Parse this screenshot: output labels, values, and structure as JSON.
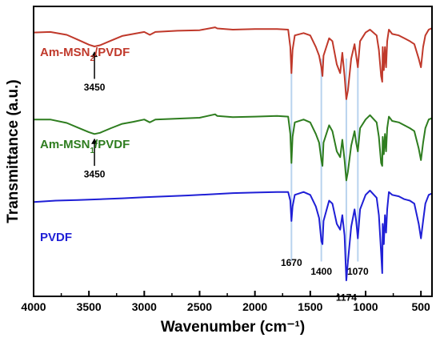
{
  "chart_data": {
    "type": "line",
    "xlabel": "Wavenumber (cm⁻¹)",
    "ylabel": "Transmittance (a.u.)",
    "xlim": [
      4000,
      400
    ],
    "ylim": [
      0,
      10
    ],
    "x_reversed": true,
    "grid": false,
    "yticks_shown": false,
    "xticks": [
      4000,
      3500,
      3000,
      2500,
      2000,
      1500,
      1000,
      500
    ],
    "xtick_labels": [
      "4000",
      "3500",
      "3000",
      "2500",
      "2000",
      "1500",
      "1000",
      "500"
    ],
    "series": [
      {
        "name": "Am-MSN₂/PVDF",
        "label_main": "Am-MSN",
        "label_sub": "2",
        "label_tail": "/PVDF",
        "color": "#c0392b",
        "points": [
          [
            4000,
            9.1
          ],
          [
            3850,
            9.12
          ],
          [
            3700,
            9.02
          ],
          [
            3600,
            8.85
          ],
          [
            3500,
            8.68
          ],
          [
            3450,
            8.62
          ],
          [
            3400,
            8.66
          ],
          [
            3300,
            8.82
          ],
          [
            3200,
            8.98
          ],
          [
            3100,
            9.05
          ],
          [
            3000,
            9.12
          ],
          [
            2950,
            9.02
          ],
          [
            2900,
            9.12
          ],
          [
            2700,
            9.16
          ],
          [
            2500,
            9.18
          ],
          [
            2360,
            9.28
          ],
          [
            2340,
            9.24
          ],
          [
            2200,
            9.2
          ],
          [
            2000,
            9.22
          ],
          [
            1800,
            9.22
          ],
          [
            1700,
            9.2
          ],
          [
            1680,
            8.6
          ],
          [
            1670,
            7.7
          ],
          [
            1660,
            8.5
          ],
          [
            1640,
            9.0
          ],
          [
            1560,
            9.08
          ],
          [
            1500,
            9.0
          ],
          [
            1450,
            8.6
          ],
          [
            1420,
            8.3
          ],
          [
            1400,
            7.9
          ],
          [
            1390,
            7.6
          ],
          [
            1380,
            8.3
          ],
          [
            1330,
            8.9
          ],
          [
            1300,
            8.8
          ],
          [
            1260,
            8.0
          ],
          [
            1230,
            7.7
          ],
          [
            1210,
            8.4
          ],
          [
            1190,
            7.6
          ],
          [
            1174,
            6.8
          ],
          [
            1160,
            7.1
          ],
          [
            1130,
            8.2
          ],
          [
            1100,
            8.7
          ],
          [
            1085,
            8.3
          ],
          [
            1070,
            7.9
          ],
          [
            1050,
            8.8
          ],
          [
            1000,
            9.1
          ],
          [
            960,
            9.2
          ],
          [
            900,
            9.0
          ],
          [
            880,
            8.5
          ],
          [
            860,
            7.6
          ],
          [
            850,
            7.4
          ],
          [
            845,
            8.6
          ],
          [
            835,
            7.8
          ],
          [
            825,
            8.6
          ],
          [
            815,
            7.9
          ],
          [
            805,
            8.8
          ],
          [
            790,
            9.2
          ],
          [
            760,
            9.05
          ],
          [
            700,
            9.0
          ],
          [
            650,
            8.9
          ],
          [
            600,
            8.8
          ],
          [
            560,
            8.7
          ],
          [
            520,
            8.2
          ],
          [
            500,
            7.9
          ],
          [
            480,
            8.6
          ],
          [
            460,
            9.0
          ],
          [
            430,
            9.2
          ],
          [
            400,
            9.25
          ]
        ]
      },
      {
        "name": "Am-MSN₁/PVDF",
        "label_main": "Am-MSN",
        "label_sub": "1",
        "label_tail": "/PVDF",
        "color": "#2e7d1f",
        "points": [
          [
            4000,
            6.1
          ],
          [
            3850,
            6.1
          ],
          [
            3700,
            5.98
          ],
          [
            3600,
            5.82
          ],
          [
            3500,
            5.66
          ],
          [
            3450,
            5.6
          ],
          [
            3400,
            5.64
          ],
          [
            3300,
            5.8
          ],
          [
            3200,
            5.95
          ],
          [
            3100,
            6.02
          ],
          [
            3000,
            6.1
          ],
          [
            2950,
            6.0
          ],
          [
            2900,
            6.1
          ],
          [
            2700,
            6.13
          ],
          [
            2500,
            6.16
          ],
          [
            2360,
            6.28
          ],
          [
            2340,
            6.22
          ],
          [
            2200,
            6.18
          ],
          [
            2000,
            6.2
          ],
          [
            1800,
            6.22
          ],
          [
            1700,
            6.2
          ],
          [
            1680,
            5.6
          ],
          [
            1670,
            4.6
          ],
          [
            1660,
            5.5
          ],
          [
            1640,
            6.0
          ],
          [
            1560,
            6.1
          ],
          [
            1500,
            6.0
          ],
          [
            1450,
            5.6
          ],
          [
            1420,
            5.3
          ],
          [
            1400,
            4.7
          ],
          [
            1390,
            4.5
          ],
          [
            1380,
            5.3
          ],
          [
            1330,
            5.9
          ],
          [
            1300,
            5.7
          ],
          [
            1260,
            5.0
          ],
          [
            1230,
            4.8
          ],
          [
            1210,
            5.4
          ],
          [
            1190,
            4.7
          ],
          [
            1174,
            4.0
          ],
          [
            1160,
            4.3
          ],
          [
            1130,
            5.2
          ],
          [
            1100,
            5.7
          ],
          [
            1085,
            5.3
          ],
          [
            1070,
            5.0
          ],
          [
            1050,
            5.8
          ],
          [
            1000,
            6.1
          ],
          [
            960,
            6.25
          ],
          [
            900,
            6.0
          ],
          [
            880,
            5.5
          ],
          [
            860,
            4.6
          ],
          [
            850,
            4.5
          ],
          [
            845,
            5.5
          ],
          [
            835,
            4.9
          ],
          [
            825,
            5.6
          ],
          [
            815,
            5.0
          ],
          [
            805,
            5.8
          ],
          [
            790,
            6.2
          ],
          [
            760,
            6.05
          ],
          [
            700,
            6.0
          ],
          [
            650,
            5.9
          ],
          [
            600,
            5.8
          ],
          [
            560,
            5.7
          ],
          [
            520,
            5.1
          ],
          [
            500,
            4.7
          ],
          [
            480,
            5.3
          ],
          [
            460,
            5.8
          ],
          [
            430,
            6.1
          ],
          [
            400,
            6.15
          ]
        ]
      },
      {
        "name": "PVDF",
        "label_main": "PVDF",
        "label_sub": "",
        "label_tail": "",
        "color": "#1f1fd6",
        "points": [
          [
            4000,
            3.25
          ],
          [
            3800,
            3.3
          ],
          [
            3600,
            3.32
          ],
          [
            3400,
            3.35
          ],
          [
            3200,
            3.38
          ],
          [
            3000,
            3.42
          ],
          [
            2800,
            3.45
          ],
          [
            2600,
            3.48
          ],
          [
            2400,
            3.52
          ],
          [
            2200,
            3.56
          ],
          [
            2000,
            3.58
          ],
          [
            1800,
            3.6
          ],
          [
            1700,
            3.6
          ],
          [
            1680,
            3.3
          ],
          [
            1670,
            2.6
          ],
          [
            1660,
            3.1
          ],
          [
            1640,
            3.5
          ],
          [
            1560,
            3.6
          ],
          [
            1500,
            3.5
          ],
          [
            1450,
            3.1
          ],
          [
            1420,
            2.7
          ],
          [
            1400,
            1.9
          ],
          [
            1390,
            1.8
          ],
          [
            1380,
            2.6
          ],
          [
            1330,
            3.3
          ],
          [
            1300,
            3.2
          ],
          [
            1260,
            2.5
          ],
          [
            1230,
            2.3
          ],
          [
            1210,
            2.8
          ],
          [
            1190,
            2.1
          ],
          [
            1174,
            0.55
          ],
          [
            1160,
            1.2
          ],
          [
            1130,
            2.4
          ],
          [
            1100,
            3.0
          ],
          [
            1085,
            2.6
          ],
          [
            1070,
            2.0
          ],
          [
            1050,
            3.0
          ],
          [
            1000,
            3.5
          ],
          [
            960,
            3.65
          ],
          [
            900,
            3.4
          ],
          [
            880,
            2.8
          ],
          [
            860,
            1.5
          ],
          [
            850,
            0.8
          ],
          [
            845,
            2.5
          ],
          [
            835,
            1.8
          ],
          [
            825,
            2.8
          ],
          [
            815,
            2.2
          ],
          [
            805,
            3.0
          ],
          [
            790,
            3.6
          ],
          [
            760,
            3.5
          ],
          [
            700,
            3.45
          ],
          [
            650,
            3.35
          ],
          [
            600,
            3.3
          ],
          [
            560,
            3.2
          ],
          [
            520,
            2.5
          ],
          [
            500,
            2.0
          ],
          [
            480,
            2.6
          ],
          [
            460,
            3.2
          ],
          [
            430,
            3.5
          ],
          [
            400,
            3.55
          ]
        ]
      }
    ],
    "annotations": [
      {
        "text": "3450",
        "x": 3450,
        "y_from": 7.5,
        "y_to": 8.45,
        "label_y": 7.1
      },
      {
        "text": "3450",
        "x": 3450,
        "y_from": 4.5,
        "y_to": 5.45,
        "label_y": 4.1
      }
    ],
    "peak_lines": [
      1670,
      1400,
      1174,
      1070
    ],
    "peak_line_range": [
      1.2,
      8.2
    ],
    "peak_labels": [
      {
        "text": "1670",
        "x": 1670,
        "y": 1.05
      },
      {
        "text": "1400",
        "x": 1400,
        "y": 0.75
      },
      {
        "text": "1070",
        "x": 1070,
        "y": 0.75
      },
      {
        "text": "1174",
        "x": 1174,
        "y": -0.15
      }
    ]
  }
}
